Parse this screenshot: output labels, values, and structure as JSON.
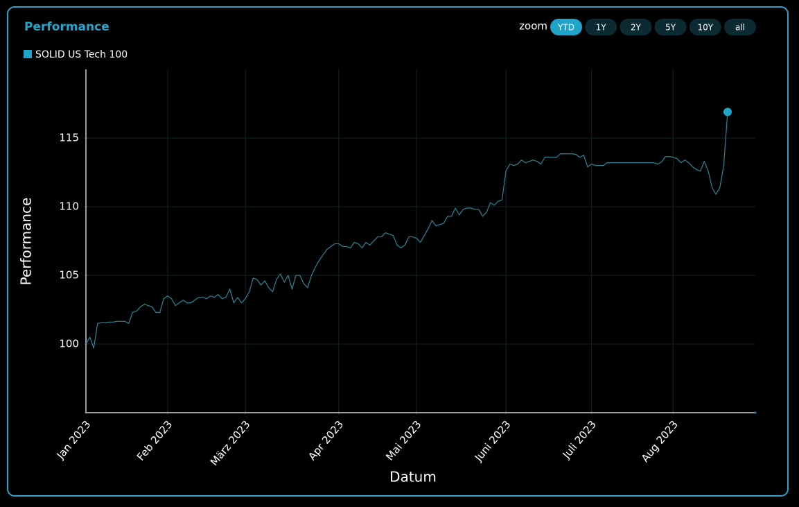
{
  "ui": {
    "zoom": {
      "label": "zoom",
      "options": [
        "YTD",
        "1Y",
        "2Y",
        "5Y",
        "10Y",
        "all"
      ],
      "selected": "YTD"
    }
  },
  "chart_data": {
    "type": "line",
    "title": "Performance",
    "x_label": "Datum",
    "y_label": "Performance",
    "categories": [
      "Jan 2023",
      null,
      null,
      null,
      null,
      null,
      null,
      null,
      null,
      null,
      null,
      null,
      null,
      null,
      null,
      null,
      null,
      null,
      null,
      null,
      null,
      "Feb 2023",
      null,
      null,
      null,
      null,
      null,
      null,
      null,
      null,
      null,
      null,
      null,
      null,
      null,
      null,
      null,
      null,
      null,
      null,
      null,
      "März 2023",
      null,
      null,
      null,
      null,
      null,
      null,
      null,
      null,
      null,
      null,
      null,
      null,
      null,
      null,
      null,
      null,
      null,
      null,
      null,
      null,
      null,
      null,
      null,
      "Apr 2023",
      null,
      null,
      null,
      null,
      null,
      null,
      null,
      null,
      null,
      null,
      null,
      null,
      null,
      null,
      null,
      null,
      null,
      null,
      null,
      "Mai 2023",
      null,
      null,
      null,
      null,
      null,
      null,
      null,
      null,
      null,
      null,
      null,
      null,
      null,
      null,
      null,
      null,
      null,
      null,
      null,
      null,
      null,
      null,
      "Juni 2023",
      null,
      null,
      null,
      null,
      null,
      null,
      null,
      null,
      null,
      null,
      null,
      null,
      null,
      null,
      null,
      null,
      null,
      null,
      null,
      null,
      null,
      "Juli 2023",
      null,
      null,
      null,
      null,
      null,
      null,
      null,
      null,
      null,
      null,
      null,
      null,
      null,
      null,
      null,
      null,
      null,
      null,
      null,
      null,
      "Aug 2023",
      null,
      null,
      null,
      null,
      null,
      null,
      null,
      null,
      null,
      null,
      null,
      null,
      null,
      null
    ],
    "series": [
      {
        "name": "SOLID US Tech 100",
        "color": "#1fa3c9",
        "line_color": "#2a8797",
        "values": [
          100.0,
          100.5,
          99.7,
          101.5,
          101.55,
          101.55,
          101.6,
          101.6,
          101.65,
          101.65,
          101.65,
          101.5,
          102.3,
          102.4,
          102.7,
          102.9,
          102.8,
          102.7,
          102.3,
          102.3,
          103.3,
          103.5,
          103.3,
          102.8,
          103.0,
          103.2,
          103.0,
          103.0,
          103.2,
          103.4,
          103.4,
          103.3,
          103.5,
          103.4,
          103.6,
          103.3,
          103.4,
          104.0,
          103.0,
          103.4,
          103.0,
          103.3,
          103.8,
          104.8,
          104.7,
          104.3,
          104.6,
          104.1,
          103.8,
          104.7,
          105.1,
          104.5,
          105.0,
          104.0,
          105.0,
          105.0,
          104.4,
          104.1,
          105.0,
          105.6,
          106.1,
          106.5,
          106.9,
          107.1,
          107.3,
          107.3,
          107.1,
          107.1,
          107.0,
          107.4,
          107.3,
          107.0,
          107.4,
          107.2,
          107.5,
          107.8,
          107.8,
          108.1,
          108.0,
          107.9,
          107.2,
          107.0,
          107.2,
          107.8,
          107.8,
          107.7,
          107.4,
          107.9,
          108.4,
          109.0,
          108.6,
          108.7,
          108.8,
          109.3,
          109.3,
          109.9,
          109.4,
          109.8,
          109.9,
          109.9,
          109.8,
          109.8,
          109.3,
          109.6,
          110.3,
          110.1,
          110.4,
          110.5,
          112.6,
          113.1,
          113.0,
          113.1,
          113.4,
          113.2,
          113.3,
          113.4,
          113.3,
          113.1,
          113.6,
          113.6,
          113.6,
          113.6,
          113.85,
          113.85,
          113.85,
          113.85,
          113.8,
          113.6,
          113.75,
          112.9,
          113.1,
          113.0,
          113.0,
          113.0,
          113.2,
          113.2,
          113.2,
          113.2,
          113.2,
          113.2,
          113.2,
          113.2,
          113.2,
          113.2,
          113.2,
          113.2,
          113.2,
          113.1,
          113.25,
          113.65,
          113.65,
          113.6,
          113.5,
          113.2,
          113.4,
          113.2,
          112.9,
          112.7,
          112.6,
          113.3,
          112.6,
          111.4,
          110.9,
          111.4,
          113.0,
          116.9
        ]
      }
    ],
    "ylim": [
      95,
      120
    ],
    "yticks": [
      100,
      105,
      110,
      115
    ],
    "grid": true,
    "legend": "top-left"
  }
}
